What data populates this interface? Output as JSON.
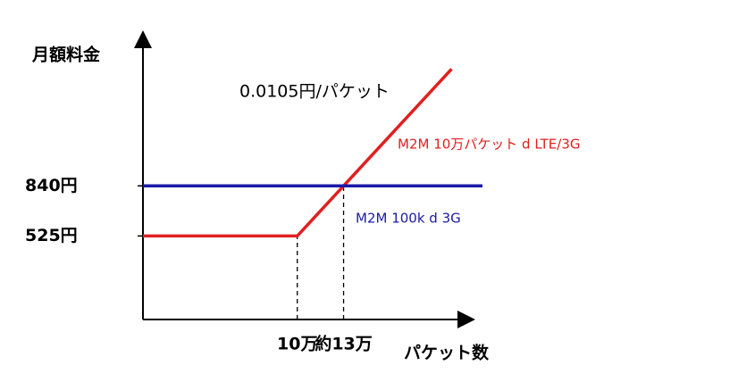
{
  "chart_data": {
    "type": "line",
    "x_label": "パケット数",
    "y_label": "月額料金",
    "annotation": "0.0105円/パケット",
    "xlim": [
      0,
      220000
    ],
    "ylim": [
      0,
      1700
    ],
    "xticks": [
      {
        "value": 100000,
        "label": "10万"
      },
      {
        "value": 130000,
        "label": "約13万"
      }
    ],
    "yticks": [
      {
        "value": 525,
        "label": "525円"
      },
      {
        "value": 840,
        "label": "840円"
      }
    ],
    "series": [
      {
        "name": "M2M 10万パケット d LTE/3G",
        "color": "#e02020",
        "x": [
          0,
          100000,
          200000
        ],
        "values": [
          525,
          525,
          1575
        ]
      },
      {
        "name": "M2M 100k d 3G",
        "color": "#1a1aa8",
        "x": [
          0,
          220000
        ],
        "values": [
          840,
          840
        ]
      }
    ]
  }
}
